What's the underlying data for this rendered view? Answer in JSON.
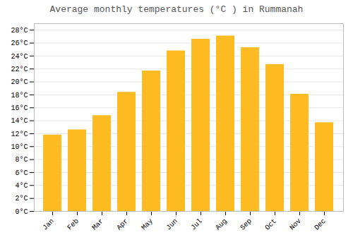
{
  "chart_data": {
    "type": "bar",
    "title": "Average monthly temperatures (°C ) in Rummanah",
    "categories": [
      "Jan",
      "Feb",
      "Mar",
      "Apr",
      "May",
      "Jun",
      "Jul",
      "Aug",
      "Sep",
      "Oct",
      "Nov",
      "Dec"
    ],
    "values": [
      11.8,
      12.6,
      14.8,
      18.4,
      21.7,
      24.8,
      26.6,
      27.1,
      25.3,
      22.7,
      18.1,
      13.7
    ],
    "color": "#FFBB22",
    "ylim": [
      0,
      29
    ],
    "yticks": [
      {
        "value": 0,
        "label": "0°C"
      },
      {
        "value": 2,
        "label": "2°C"
      },
      {
        "value": 4,
        "label": "4°C"
      },
      {
        "value": 6,
        "label": "6°C"
      },
      {
        "value": 8,
        "label": "8°C"
      },
      {
        "value": 10,
        "label": "10°C"
      },
      {
        "value": 12,
        "label": "12°C"
      },
      {
        "value": 14,
        "label": "14°C"
      },
      {
        "value": 16,
        "label": "16°C"
      },
      {
        "value": 18,
        "label": "18°C"
      },
      {
        "value": 20,
        "label": "20°C"
      },
      {
        "value": 22,
        "label": "22°C"
      },
      {
        "value": 24,
        "label": "24°C"
      },
      {
        "value": 26,
        "label": "26°C"
      },
      {
        "value": 28,
        "label": "28°C"
      }
    ],
    "grid": true
  }
}
